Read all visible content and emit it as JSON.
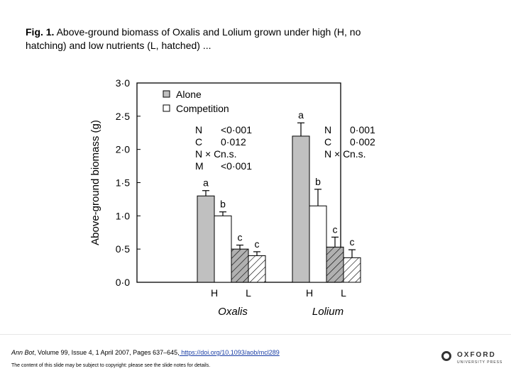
{
  "caption": {
    "fig_label": "Fig. 1.",
    "text": " Above-ground biomass of Oxalis and Lolium grown under high (H, no hatching) and low nutrients (L, hatched) ..."
  },
  "footer": {
    "citation_prefix": "Ann Bot, Volume 99, Issue 4, 1 April 2007, Pages 637–645,",
    "citation_link": " https://doi.org/10.1093/aob/mcl289",
    "notice": "The content of this slide may be subject to copyright: please see the slide notes for details.",
    "publisher_word": "OXFORD",
    "publisher_sub": "UNIVERSITY PRESS"
  },
  "chart_data": {
    "type": "bar",
    "ylabel": "Above-ground biomass (g)",
    "ylim": [
      0,
      3.0
    ],
    "yticks": [
      "0·0",
      "0·5",
      "1·0",
      "1·5",
      "2·0",
      "2·5",
      "3·0"
    ],
    "legend": [
      {
        "label": "Alone",
        "fill": "#c0c0c0"
      },
      {
        "label": "Competition",
        "fill": "#ffffff"
      }
    ],
    "groups": [
      {
        "species": "Oxalis",
        "bars": [
          {
            "nutrient": "H",
            "treatment": "Alone",
            "value": 1.3,
            "error": 0.08,
            "letter": "a"
          },
          {
            "nutrient": "H",
            "treatment": "Competition",
            "value": 1.0,
            "error": 0.06,
            "letter": "b"
          },
          {
            "nutrient": "L",
            "treatment": "Alone",
            "value": 0.5,
            "error": 0.06,
            "letter": "c"
          },
          {
            "nutrient": "L",
            "treatment": "Competition",
            "value": 0.4,
            "error": 0.06,
            "letter": "c"
          }
        ],
        "stats": [
          {
            "term": "N",
            "p": "<0·001"
          },
          {
            "term": "C",
            "p": "0·012"
          },
          {
            "term": "N × C",
            "p": "n.s."
          },
          {
            "term": "M",
            "p": "<0·001"
          }
        ]
      },
      {
        "species": "Lolium",
        "bars": [
          {
            "nutrient": "H",
            "treatment": "Alone",
            "value": 2.2,
            "error": 0.2,
            "letter": "a"
          },
          {
            "nutrient": "H",
            "treatment": "Competition",
            "value": 1.15,
            "error": 0.25,
            "letter": "b"
          },
          {
            "nutrient": "L",
            "treatment": "Alone",
            "value": 0.53,
            "error": 0.15,
            "letter": "c"
          },
          {
            "nutrient": "L",
            "treatment": "Competition",
            "value": 0.37,
            "error": 0.12,
            "letter": "c"
          }
        ],
        "stats": [
          {
            "term": "N",
            "p": "0·001"
          },
          {
            "term": "C",
            "p": "0·002"
          },
          {
            "term": "N × C",
            "p": "n.s."
          }
        ]
      }
    ]
  }
}
